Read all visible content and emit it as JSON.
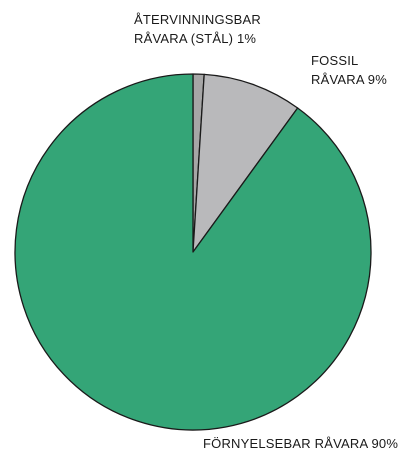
{
  "chart_data": {
    "type": "pie",
    "start_angle_deg": 0,
    "direction": "clockwise",
    "slices": [
      {
        "label_lines": [
          "ÅTERVINNINGSBAR",
          "RÅVARA (STÅL) 1%"
        ],
        "value": 1,
        "color": "#a6a6a6"
      },
      {
        "label_lines": [
          "FOSSIL",
          "RÅVARA 9%"
        ],
        "value": 9,
        "color": "#b9b9bb"
      },
      {
        "label_lines": [
          "FÖRNYELSEBAR RÅVARA 90%"
        ],
        "value": 90,
        "color": "#34a577"
      }
    ],
    "outline_color": "#1a1a1a"
  }
}
